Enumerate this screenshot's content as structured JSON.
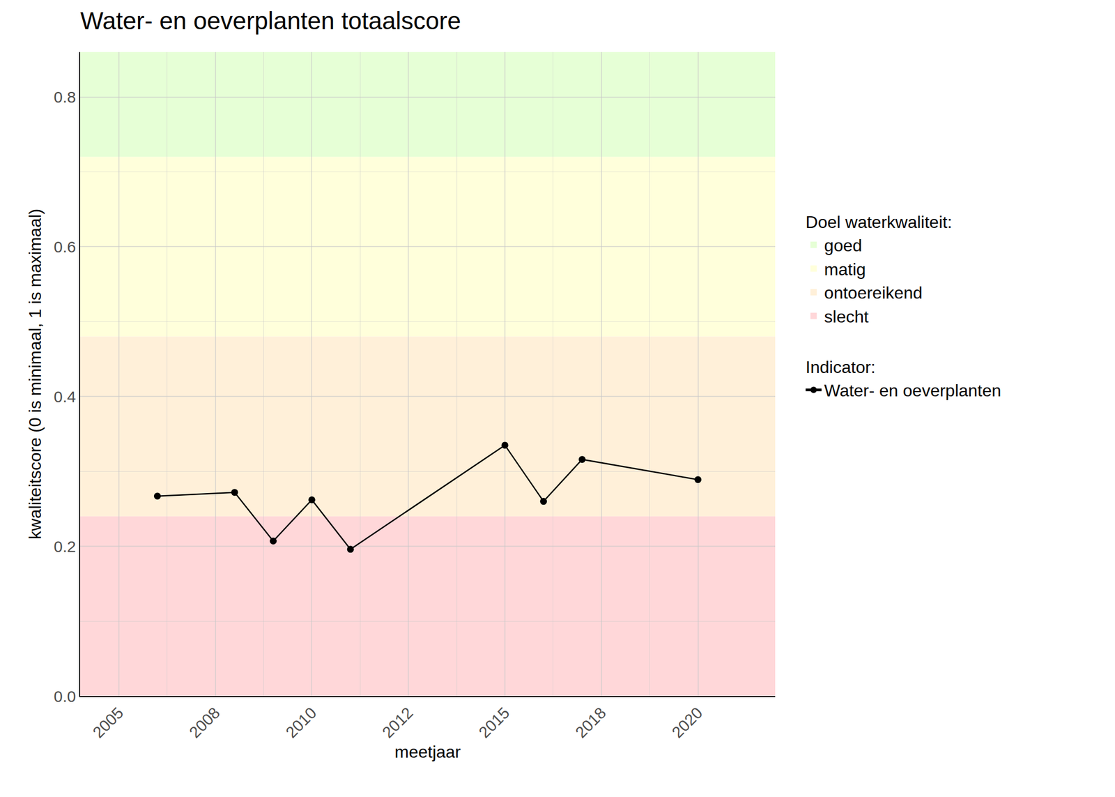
{
  "chart_data": {
    "type": "line",
    "title": "Water- en oeverplanten totaalscore",
    "x_label": "meetjaar",
    "y_label": "kwaliteitscore (0 is minimaal, 1 is maximaal)",
    "x": [
      2006,
      2008,
      2009,
      2010,
      2011,
      2015,
      2016,
      2017,
      2020
    ],
    "series": [
      {
        "name": "Water- en oeverplanten",
        "legend_title": "Indicator:",
        "color": "#000000",
        "marker": "circle",
        "line_style": "solid",
        "values": [
          0.267,
          0.272,
          0.207,
          0.262,
          0.196,
          0.335,
          0.26,
          0.316,
          0.289
        ]
      }
    ],
    "bands": {
      "title": "Doel waterkwaliteit:",
      "items": [
        {
          "name": "goed",
          "from": 0.72,
          "to": 1,
          "color": "#e6ffd6"
        },
        {
          "name": "matig",
          "from": 0.48,
          "to": 0.72,
          "color": "#ffffdb"
        },
        {
          "name": "ontoereikend",
          "from": 0.24,
          "to": 0.48,
          "color": "#fff0d9"
        },
        {
          "name": "slecht",
          "from": 0,
          "to": 0.24,
          "color": "#ffd7d9"
        }
      ]
    },
    "xlim": [
      2004,
      2022
    ],
    "xticks": [
      {
        "value": 2005,
        "label": "2005"
      },
      {
        "value": 2007.5,
        "label": "2008"
      },
      {
        "value": 2010,
        "label": "2010"
      },
      {
        "value": 2012.5,
        "label": "2012"
      },
      {
        "value": 2015,
        "label": "2015"
      },
      {
        "value": 2017.5,
        "label": "2018"
      },
      {
        "value": 2020,
        "label": "2020"
      }
    ],
    "ylim": [
      0,
      0.86
    ],
    "yticks": [
      {
        "value": 0,
        "label": "0.0"
      },
      {
        "value": 0.2,
        "label": "0.2"
      },
      {
        "value": 0.4,
        "label": "0.4"
      },
      {
        "value": 0.6,
        "label": "0.6"
      },
      {
        "value": 0.8,
        "label": "0.8"
      }
    ],
    "grid": true,
    "legend": "right"
  }
}
